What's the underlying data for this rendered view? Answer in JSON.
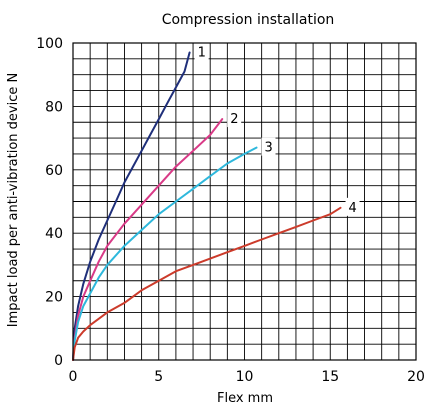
{
  "chart_data": {
    "type": "line",
    "title": "Compression installation",
    "xlabel": "Flex mm",
    "ylabel": "Impact load per anti-vibration device N",
    "xlim": [
      0,
      20
    ],
    "ylim": [
      0,
      100
    ],
    "x_ticks": [
      0,
      5,
      10,
      15,
      20
    ],
    "y_ticks": [
      0,
      20,
      40,
      60,
      80,
      100
    ],
    "x_grid_step": 1,
    "y_grid_step": 5,
    "grid": true,
    "legend": "inline labels at line ends",
    "series": [
      {
        "name": "1",
        "color": "#1f2f7a",
        "x": [
          0,
          0.1,
          0.3,
          0.6,
          1.0,
          1.5,
          2.0,
          2.5,
          3.0,
          3.5,
          4.0,
          4.5,
          5.0,
          5.5,
          6.0,
          6.5,
          6.8
        ],
        "y": [
          0,
          10,
          17,
          24,
          31,
          38,
          44,
          50,
          56,
          61,
          66,
          71,
          76,
          81,
          86,
          91,
          97
        ]
      },
      {
        "name": "2",
        "color": "#d93a87",
        "x": [
          0,
          0.1,
          0.3,
          0.6,
          1.0,
          1.5,
          2.0,
          3.0,
          4.0,
          5.0,
          6.0,
          7.0,
          8.0,
          8.7
        ],
        "y": [
          0,
          7,
          14,
          20,
          25,
          31,
          36,
          43,
          49,
          55,
          61,
          66,
          71,
          76
        ]
      },
      {
        "name": "3",
        "color": "#2eb8dc",
        "x": [
          0,
          0.1,
          0.3,
          0.6,
          1.0,
          1.5,
          2.0,
          3.0,
          4.0,
          5.0,
          6.0,
          7.0,
          8.0,
          9.0,
          10.0,
          10.7
        ],
        "y": [
          0,
          6,
          12,
          17,
          21,
          26,
          30,
          36,
          41,
          46,
          50,
          54,
          58,
          62,
          65,
          67
        ]
      },
      {
        "name": "4",
        "color": "#cc3b2b",
        "x": [
          0,
          0.1,
          0.3,
          0.6,
          1.0,
          1.5,
          2.0,
          3.0,
          4.0,
          5.0,
          6.0,
          7.0,
          8.0,
          9.0,
          10.0,
          11.0,
          12.0,
          13.0,
          14.0,
          15.0,
          15.6
        ],
        "y": [
          0,
          4,
          7,
          9,
          11,
          13,
          15,
          18,
          22,
          25,
          28,
          30,
          32,
          34,
          36,
          38,
          40,
          42,
          44,
          46,
          48
        ]
      }
    ]
  }
}
